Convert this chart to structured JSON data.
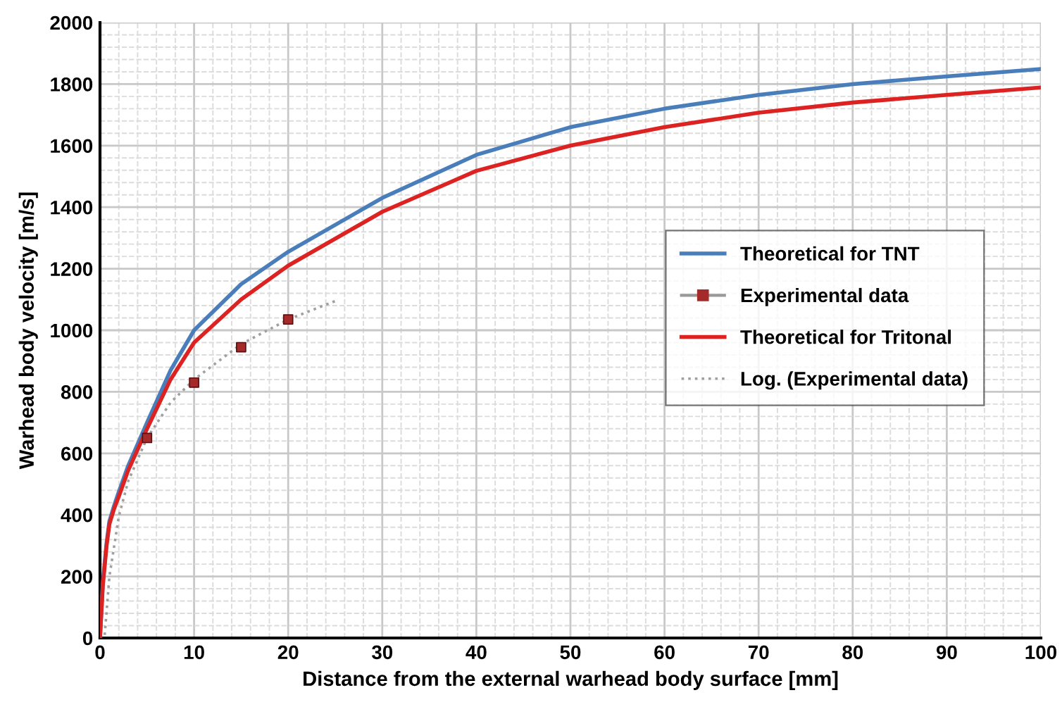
{
  "chart_data": {
    "type": "line",
    "xlabel": "Distance from the external warhead body surface [mm]",
    "ylabel": "Warhead body velocity [m/s]",
    "xlim": [
      0,
      100
    ],
    "xticks": [
      0,
      10,
      20,
      30,
      40,
      50,
      60,
      70,
      80,
      90,
      100
    ],
    "ylim": [
      0,
      2000
    ],
    "yticks": [
      0,
      200,
      400,
      600,
      800,
      1000,
      1200,
      1400,
      1600,
      1800,
      2000
    ],
    "grid": true,
    "legend": "right",
    "series": [
      {
        "name": "Theoretical for TNT",
        "color": "#4a7ebb",
        "line_style": "solid",
        "marker": "none",
        "x": [
          0,
          0.3,
          0.7,
          1,
          1.5,
          2,
          3,
          5,
          7.5,
          10,
          15,
          20,
          30,
          40,
          50,
          60,
          70,
          80,
          90,
          100
        ],
        "values": [
          0,
          180,
          310,
          380,
          430,
          475,
          560,
          700,
          870,
          1000,
          1150,
          1255,
          1430,
          1570,
          1660,
          1720,
          1765,
          1800,
          1825,
          1849
        ]
      },
      {
        "name": "Experimental data",
        "type": "scatter",
        "color": "#a52a2a",
        "marker": "square",
        "x": [
          5,
          10,
          15,
          20
        ],
        "values": [
          650,
          830,
          945,
          1035
        ]
      },
      {
        "name": "Theoretical for Tritonal",
        "color": "#dd2222",
        "line_style": "solid",
        "marker": "none",
        "x": [
          0,
          0.3,
          0.7,
          1,
          1.5,
          2,
          3,
          5,
          7.5,
          10,
          15,
          20,
          30,
          40,
          50,
          60,
          70,
          80,
          90,
          100
        ],
        "values": [
          0,
          170,
          300,
          370,
          420,
          460,
          545,
          680,
          840,
          960,
          1100,
          1210,
          1385,
          1518,
          1600,
          1660,
          1707,
          1740,
          1765,
          1789
        ]
      },
      {
        "name": "Log. (Experimental data)",
        "color": "#a0a0a0",
        "line_style": "dotted",
        "marker": "none",
        "x": [
          0.5,
          1,
          2,
          3,
          5,
          7.5,
          10,
          15,
          20,
          25
        ],
        "values": [
          10,
          200,
          395,
          510,
          650,
          765,
          840,
          955,
          1035,
          1095
        ]
      }
    ]
  }
}
